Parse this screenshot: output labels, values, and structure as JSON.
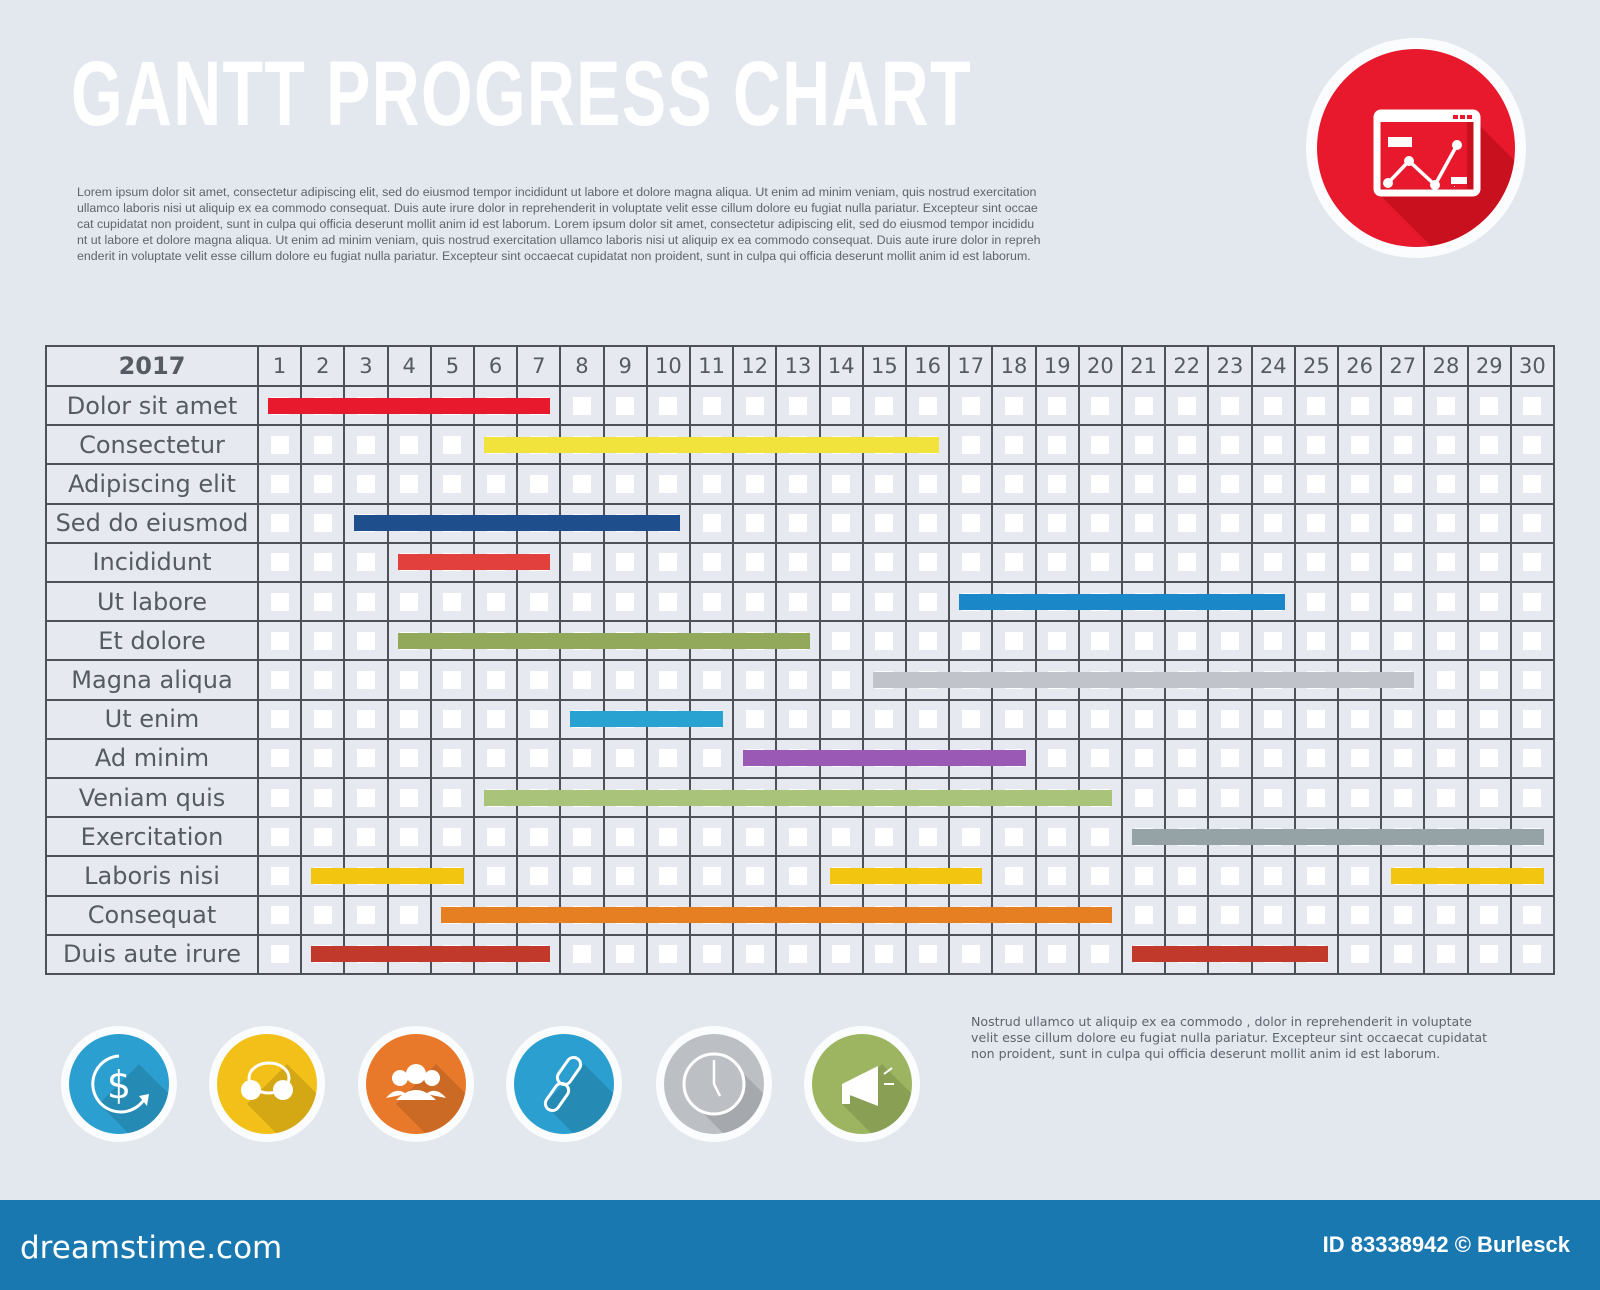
{
  "title": "GANTT PROGRESS CHART",
  "description": [
    "Lorem ipsum dolor sit amet, consectetur adipiscing elit, sed do eiusmod tempor incididunt ut labore et dolore magna aliqua. Ut enim ad minim veniam, quis nostrud exercitation",
    "ullamco laboris nisi ut aliquip ex ea commodo consequat. Duis aute irure dolor in reprehenderit in voluptate velit esse cillum dolore eu fugiat nulla pariatur. Excepteur sint occae",
    "cat cupidatat non proident, sunt in culpa qui officia deserunt mollit anim id est laborum. Lorem ipsum dolor sit amet, consectetur adipiscing elit, sed do eiusmod tempor incididu",
    "nt ut labore et dolore magna aliqua. Ut enim ad minim veniam, quis nostrud exercitation ullamco laboris nisi ut aliquip ex ea commodo consequat. Duis aute irure dolor in repreh",
    "enderit in voluptate velit esse cillum dolore eu fugiat nulla pariatur. Excepteur sint occaecat cupidatat non proident, sunt in culpa qui officia deserunt mollit anim id est laborum."
  ],
  "hero_icon": "chart-window-icon",
  "hero_color": "#e8192c",
  "chart_data": {
    "type": "gantt",
    "year_label": "2017",
    "days": [
      "1",
      "2",
      "3",
      "4",
      "5",
      "6",
      "7",
      "8",
      "9",
      "10",
      "11",
      "12",
      "13",
      "14",
      "15",
      "16",
      "17",
      "18",
      "19",
      "20",
      "21",
      "22",
      "23",
      "24",
      "25",
      "26",
      "27",
      "28",
      "29",
      "30"
    ],
    "tasks": [
      {
        "name": "Dolor sit amet",
        "color": "#e8192c",
        "segments": [
          [
            1,
            7
          ]
        ]
      },
      {
        "name": "Consectetur",
        "color": "#f2e33c",
        "segments": [
          [
            6,
            16
          ]
        ]
      },
      {
        "name": "Adipiscing elit",
        "color": "#cccccc",
        "segments": []
      },
      {
        "name": "Sed do eiusmod",
        "color": "#1f4e8c",
        "segments": [
          [
            3,
            10
          ]
        ]
      },
      {
        "name": "Incididunt",
        "color": "#e2403c",
        "segments": [
          [
            4,
            7
          ]
        ]
      },
      {
        "name": "Ut labore",
        "color": "#1a87c9",
        "segments": [
          [
            17,
            24
          ]
        ]
      },
      {
        "name": "Et dolore",
        "color": "#92a85a",
        "segments": [
          [
            4,
            13
          ]
        ]
      },
      {
        "name": "Magna aliqua",
        "color": "#c0c4ca",
        "segments": [
          [
            15,
            27
          ]
        ]
      },
      {
        "name": "Ut enim",
        "color": "#28a2d0",
        "segments": [
          [
            8,
            11
          ]
        ]
      },
      {
        "name": "Ad minim",
        "color": "#9b59b6",
        "segments": [
          [
            12,
            18
          ]
        ]
      },
      {
        "name": "Veniam quis",
        "color": "#a9c47a",
        "segments": [
          [
            6,
            20
          ]
        ]
      },
      {
        "name": "Exercitation",
        "color": "#96a3a6",
        "segments": [
          [
            21,
            30
          ]
        ]
      },
      {
        "name": "Laboris nisi",
        "color": "#f2c511",
        "segments": [
          [
            2,
            5
          ],
          [
            14,
            17
          ],
          [
            27,
            30
          ]
        ]
      },
      {
        "name": "Consequat",
        "color": "#e67e22",
        "segments": [
          [
            5,
            20
          ]
        ]
      },
      {
        "name": "Duis aute irure",
        "color": "#c0392b",
        "segments": [
          [
            2,
            7
          ],
          [
            21,
            25
          ]
        ]
      }
    ]
  },
  "note": [
    "Nostrud  ullamco ut aliquip ex ea commodo ,  dolor in reprehenderit in voluptate",
    "velit esse cillum dolore eu fugiat nulla pariatur. Excepteur sint occaecat cupidatat",
    "non proident, sunt in culpa qui officia deserunt mollit anim id est laborum."
  ],
  "icons": [
    {
      "name": "dollar-cycle-icon",
      "color": "#2b9fcf"
    },
    {
      "name": "chat-bubbles-icon",
      "color": "#f2c018"
    },
    {
      "name": "people-group-icon",
      "color": "#e8792a"
    },
    {
      "name": "chain-link-icon",
      "color": "#2b9fcf"
    },
    {
      "name": "clock-icon",
      "color": "#bcc0c5"
    },
    {
      "name": "megaphone-icon",
      "color": "#9db560"
    }
  ],
  "footer": {
    "brand": "dreamstime.com",
    "id_text": "ID 83338942 © Burlesck",
    "color": "#1978b0"
  }
}
